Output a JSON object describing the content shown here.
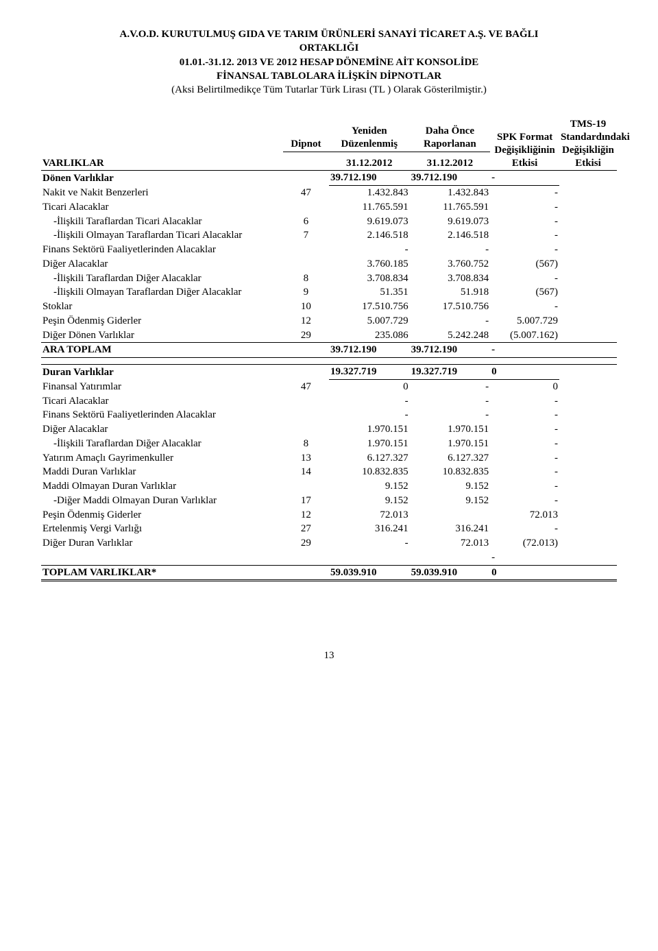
{
  "header": {
    "line1": "A.V.O.D. KURUTULMUŞ GIDA VE TARIM ÜRÜNLERİ SANAYİ TİCARET A.Ş. VE BAĞLI",
    "line2": "ORTAKLIĞI",
    "line3": "01.01.-31.12. 2013 VE  2012 HESAP DÖNEMİNE AİT KONSOLİDE",
    "line4": "FİNANSAL TABLOLARA İLİŞKİN DİPNOTLAR",
    "line5": "(Aksi Belirtilmedikçe Tüm Tutarlar Türk Lirası (TL ) Olarak Gösterilmiştir.)"
  },
  "columns": {
    "varliklar": "VARLIKLAR",
    "dipnot": "Dipnot",
    "colA_top": "Yeniden Düzenlenmiş",
    "colA_bot": "31.12.2012",
    "colB_top": "Daha Önce Raporlanan",
    "colB_bot": "31.12.2012",
    "colC": "SPK Format Değişikliğinin Etkisi",
    "colD": "TMS-19 Standardındaki Değişikliğin Etkisi"
  },
  "sections": {
    "donen": {
      "title": "Dönen Varlıklar",
      "a": "39.712.190",
      "b": "39.712.190",
      "c": "-",
      "rows": [
        {
          "label": "Nakit ve Nakit Benzerleri",
          "dip": "47",
          "a": "1.432.843",
          "b": "1.432.843",
          "c": "-"
        },
        {
          "label": "Ticari Alacaklar",
          "dip": "",
          "a": "11.765.591",
          "b": "11.765.591",
          "c": "-"
        },
        {
          "label": "-İlişkili Taraflardan Ticari Alacaklar",
          "indent": true,
          "dip": "6",
          "a": "9.619.073",
          "b": "9.619.073",
          "c": "-"
        },
        {
          "label": "-İlişkili Olmayan Taraflardan Ticari Alacaklar",
          "indent": true,
          "dip": "7",
          "a": "2.146.518",
          "b": "2.146.518",
          "c": "-"
        },
        {
          "label": "Finans Sektörü Faaliyetlerinden Alacaklar",
          "dip": "",
          "a": "-",
          "b": "-",
          "c": "-"
        },
        {
          "label": "Diğer Alacaklar",
          "dip": "",
          "a": "3.760.185",
          "b": "3.760.752",
          "c": "(567)"
        },
        {
          "label": "-İlişkili Taraflardan Diğer Alacaklar",
          "indent": true,
          "dip": "8",
          "a": "3.708.834",
          "b": "3.708.834",
          "c": "-"
        },
        {
          "label": "-İlişkili Olmayan Taraflardan Diğer Alacaklar",
          "indent": true,
          "dip": "9",
          "a": "51.351",
          "b": "51.918",
          "c": "(567)"
        },
        {
          "label": "Stoklar",
          "dip": "10",
          "a": "17.510.756",
          "b": "17.510.756",
          "c": "-"
        },
        {
          "label": "Peşin Ödenmiş Giderler",
          "dip": "12",
          "a": "5.007.729",
          "b": "-",
          "c": "5.007.729"
        },
        {
          "label": "Diğer Dönen Varlıklar",
          "dip": "29",
          "a": "235.086",
          "b": "5.242.248",
          "c": "(5.007.162)"
        }
      ],
      "subtotal": {
        "label": "ARA TOPLAM",
        "a": "39.712.190",
        "b": "39.712.190",
        "c": "-"
      }
    },
    "duran": {
      "title": "Duran Varlıklar",
      "a": "19.327.719",
      "b": "19.327.719",
      "c": "0",
      "rows": [
        {
          "label": "Finansal Yatırımlar",
          "dip": "47",
          "a": "0",
          "b": "-",
          "c": "0"
        },
        {
          "label": "Ticari Alacaklar",
          "dip": "",
          "a": "-",
          "b": "-",
          "c": "-"
        },
        {
          "label": "Finans Sektörü Faaliyetlerinden Alacaklar",
          "dip": "",
          "a": "-",
          "b": "-",
          "c": "-"
        },
        {
          "label": "Diğer Alacaklar",
          "dip": "",
          "a": "1.970.151",
          "b": "1.970.151",
          "c": "-"
        },
        {
          "label": "-İlişkili Taraflardan Diğer Alacaklar",
          "indent": true,
          "dip": "8",
          "a": "1.970.151",
          "b": "1.970.151",
          "c": "-"
        },
        {
          "label": "Yatırım Amaçlı Gayrimenkuller",
          "dip": "13",
          "a": "6.127.327",
          "b": "6.127.327",
          "c": "-"
        },
        {
          "label": "Maddi Duran Varlıklar",
          "dip": "14",
          "a": "10.832.835",
          "b": "10.832.835",
          "c": "-"
        },
        {
          "label": "Maddi Olmayan Duran Varlıklar",
          "dip": "",
          "a": "9.152",
          "b": "9.152",
          "c": "-"
        },
        {
          "label": "-Diğer Maddi Olmayan Duran Varlıklar",
          "indent": true,
          "dip": "17",
          "a": "9.152",
          "b": "9.152",
          "c": "-"
        },
        {
          "label": "Peşin Ödenmiş Giderler",
          "dip": "12",
          "a": "72.013",
          "b": "",
          "c": "72.013"
        },
        {
          "label": "Ertelenmiş Vergi Varlığı",
          "dip": "27",
          "a": "316.241",
          "b": "316.241",
          "c": "-"
        },
        {
          "label": "Diğer Duran Varlıklar",
          "dip": "29",
          "a": "-",
          "b": "72.013",
          "c": "(72.013)"
        }
      ],
      "trailing_c": "-"
    },
    "total": {
      "label": "TOPLAM VARLIKLAR*",
      "a": "59.039.910",
      "b": "59.039.910",
      "c": "0"
    }
  },
  "page": "13"
}
